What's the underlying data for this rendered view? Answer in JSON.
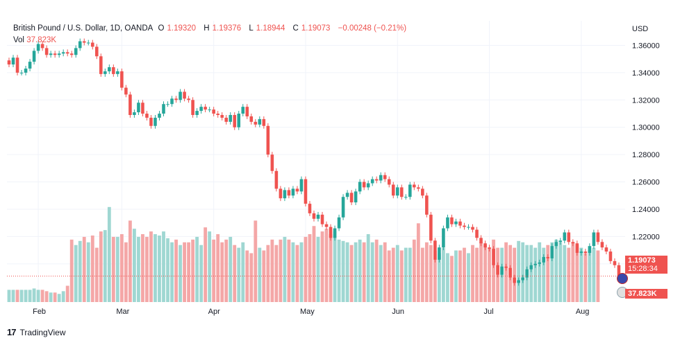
{
  "legend": {
    "symbol": "British Pound / U.S. Dollar, 1D, OANDA",
    "open_label": "O",
    "open": "1.19320",
    "high_label": "H",
    "high": "1.19376",
    "low_label": "L",
    "low": "1.18944",
    "close_label": "C",
    "close": "1.19073",
    "change": "−0.00248 (−0.21%)",
    "vol_label": "Vol",
    "vol_value": "37.823K"
  },
  "price_tag": {
    "price": "1.19073",
    "countdown": "15:28:34"
  },
  "volume_tag": "37.823K",
  "brand": "TradingView",
  "colors": {
    "up": "#26a69a",
    "down": "#ef5350",
    "up_volume": "#9fd7d2",
    "down_volume": "#f4a7a7"
  },
  "chart_data": {
    "type": "candlestick",
    "currency": "USD",
    "y_ticks": [
      "1.36000",
      "1.34000",
      "1.32000",
      "1.30000",
      "1.28000",
      "1.26000",
      "1.24000",
      "1.22000",
      "1.20000"
    ],
    "ylim": [
      1.172,
      1.378
    ],
    "x_labels": [
      "Feb",
      "Mar",
      "Apr",
      "May",
      "Jun",
      "Jul",
      "Aug"
    ],
    "x_label_index": [
      7,
      27,
      49,
      71,
      93,
      115,
      137
    ],
    "grid": true,
    "close_series": [
      1.346,
      1.351,
      1.34,
      1.34,
      1.343,
      1.348,
      1.356,
      1.361,
      1.358,
      1.353,
      1.354,
      1.353,
      1.354,
      1.355,
      1.354,
      1.353,
      1.358,
      1.363,
      1.362,
      1.362,
      1.359,
      1.352,
      1.339,
      1.341,
      1.344,
      1.339,
      1.341,
      1.329,
      1.324,
      1.309,
      1.311,
      1.318,
      1.31,
      1.307,
      1.301,
      1.307,
      1.31,
      1.317,
      1.317,
      1.321,
      1.32,
      1.326,
      1.321,
      1.32,
      1.309,
      1.312,
      1.315,
      1.313,
      1.313,
      1.31,
      1.309,
      1.307,
      1.304,
      1.309,
      1.3,
      1.31,
      1.315,
      1.308,
      1.304,
      1.302,
      1.306,
      1.301,
      1.28,
      1.268,
      1.255,
      1.248,
      1.254,
      1.25,
      1.255,
      1.253,
      1.262,
      1.244,
      1.237,
      1.233,
      1.236,
      1.229,
      1.227,
      1.219,
      1.226,
      1.234,
      1.249,
      1.252,
      1.245,
      1.253,
      1.26,
      1.256,
      1.259,
      1.262,
      1.261,
      1.265,
      1.262,
      1.258,
      1.25,
      1.256,
      1.249,
      1.249,
      1.258,
      1.256,
      1.255,
      1.25,
      1.236,
      1.217,
      1.203,
      1.212,
      1.226,
      1.234,
      1.229,
      1.231,
      1.228,
      1.227,
      1.227,
      1.225,
      1.219,
      1.215,
      1.212,
      1.211,
      1.199,
      1.192,
      1.198,
      1.197,
      1.19,
      1.186,
      1.188,
      1.19,
      1.196,
      1.199,
      1.2,
      1.201,
      1.205,
      1.204,
      1.213,
      1.216,
      1.217,
      1.223,
      1.216,
      1.215,
      1.208,
      1.209,
      1.208,
      1.213,
      1.223,
      1.216,
      1.212,
      1.209,
      1.202,
      1.199,
      1.191
    ],
    "volume_series_k": [
      9,
      9,
      9,
      9,
      9,
      9,
      10,
      9,
      9,
      8,
      7,
      7,
      6,
      8,
      12,
      46,
      42,
      45,
      48,
      44,
      49,
      40,
      52,
      53,
      70,
      48,
      48,
      50,
      44,
      60,
      54,
      48,
      50,
      48,
      52,
      50,
      49,
      52,
      47,
      44,
      46,
      42,
      44,
      44,
      46,
      48,
      42,
      55,
      52,
      46,
      50,
      44,
      46,
      48,
      42,
      40,
      44,
      38,
      36,
      60,
      40,
      38,
      42,
      46,
      42,
      46,
      48,
      46,
      44,
      42,
      44,
      48,
      50,
      56,
      48,
      52,
      54,
      50,
      52,
      46,
      45,
      44,
      42,
      44,
      46,
      44,
      50,
      44,
      46,
      42,
      44,
      38,
      40,
      42,
      38,
      40,
      40,
      46,
      58,
      40,
      44,
      42,
      38,
      36,
      40,
      36,
      34,
      38,
      38,
      40,
      36,
      42,
      40,
      44,
      42,
      40,
      46,
      40,
      40,
      44,
      42,
      40,
      45,
      44,
      42,
      42,
      40,
      44,
      40,
      42,
      44,
      46,
      44,
      42,
      40,
      44,
      42,
      40,
      36,
      38,
      40,
      38
    ]
  }
}
